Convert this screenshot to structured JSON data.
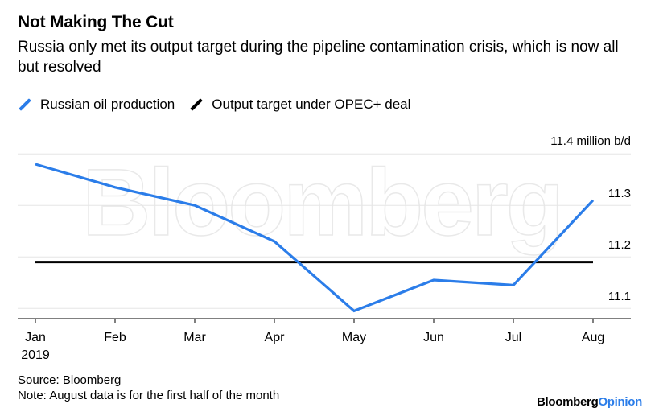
{
  "header": {
    "title": "Not Making The Cut",
    "subtitle": "Russia only met its output target during the pipeline contamination crisis, which is now all but resolved"
  },
  "legend": [
    {
      "label": "Russian oil production",
      "color": "#2b7de9"
    },
    {
      "label": "Output target under OPEC+ deal",
      "color": "#000000"
    }
  ],
  "chart_data": {
    "type": "line",
    "categories": [
      "Jan",
      "Feb",
      "Mar",
      "Apr",
      "May",
      "Jun",
      "Jul",
      "Aug"
    ],
    "year_label": "2019",
    "series": [
      {
        "name": "Russian oil production",
        "color": "#2b7de9",
        "values": [
          11.38,
          11.335,
          11.3,
          11.23,
          11.095,
          11.155,
          11.145,
          11.31
        ]
      },
      {
        "name": "Output target under OPEC+ deal",
        "color": "#000000",
        "values": [
          11.19,
          11.19,
          11.19,
          11.19,
          11.19,
          11.19,
          11.19,
          11.19
        ]
      }
    ],
    "ylim": [
      11.08,
      11.43
    ],
    "y_ticks": [
      {
        "value": 11.4,
        "label": "11.4 million b/d"
      },
      {
        "value": 11.3,
        "label": "11.3"
      },
      {
        "value": 11.2,
        "label": "11.2"
      },
      {
        "value": 11.1,
        "label": "11.1"
      }
    ],
    "grid": true,
    "legend_position": "top-left"
  },
  "watermark": "Bloomberg",
  "footer": {
    "source": "Source: Bloomberg",
    "note": "Note: August data is for the first half of the month"
  },
  "brand": {
    "part1": "Bloomberg",
    "part2": "Opinion"
  }
}
